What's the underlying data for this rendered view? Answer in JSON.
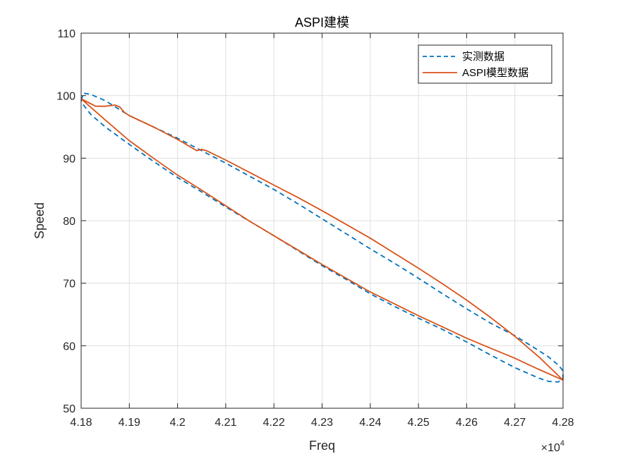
{
  "chart_data": {
    "type": "line",
    "title": "ASPI建模",
    "xlabel": "Freq",
    "ylabel": "Speed",
    "x_multiplier_label": "×10",
    "x_multiplier_exponent": "4",
    "xlim": [
      41800,
      42800
    ],
    "ylim": [
      50,
      110
    ],
    "xticks": [
      41800,
      41900,
      42000,
      42100,
      42200,
      42300,
      42400,
      42500,
      42600,
      42700,
      42800
    ],
    "xtick_labels": [
      "4.18",
      "4.19",
      "4.2",
      "4.21",
      "4.22",
      "4.23",
      "4.24",
      "4.25",
      "4.26",
      "4.27",
      "4.28"
    ],
    "yticks": [
      50,
      60,
      70,
      80,
      90,
      100,
      110
    ],
    "ytick_labels": [
      "50",
      "60",
      "70",
      "80",
      "90",
      "100",
      "110"
    ],
    "grid": true,
    "legend_position": "top-right",
    "series": [
      {
        "name": "实测数据",
        "color": "#0072BD",
        "style": "dashed",
        "x": [
          41800,
          41805,
          41820,
          41850,
          41900,
          41950,
          42000,
          42050,
          42100,
          42150,
          42200,
          42250,
          42300,
          42350,
          42400,
          42450,
          42500,
          42550,
          42600,
          42650,
          42700,
          42740,
          42770,
          42790,
          42800,
          42800,
          42790,
          42770,
          42750,
          42700,
          42650,
          42600,
          42550,
          42500,
          42450,
          42400,
          42350,
          42300,
          42250,
          42200,
          42150,
          42100,
          42050,
          42000,
          41950,
          41900,
          41850,
          41820,
          41805,
          41800
        ],
        "y": [
          99.2,
          100.4,
          100.2,
          99.2,
          96.8,
          95.0,
          93.2,
          91.2,
          89.2,
          87.1,
          85.0,
          82.7,
          80.3,
          77.9,
          75.5,
          73.2,
          70.8,
          68.3,
          65.9,
          63.6,
          61.6,
          59.7,
          58.2,
          56.9,
          56.0,
          54.7,
          54.2,
          54.3,
          54.8,
          56.5,
          58.5,
          60.6,
          62.6,
          64.4,
          66.3,
          68.3,
          70.6,
          72.8,
          75.2,
          77.6,
          79.9,
          82.2,
          84.6,
          86.9,
          89.5,
          92.2,
          95.0,
          97.0,
          98.5,
          99.2
        ]
      },
      {
        "name": "ASPI模型数据",
        "color": "#D95319",
        "style": "solid",
        "x": [
          41800,
          41830,
          41850,
          41870,
          41880,
          41890,
          41900,
          41950,
          42000,
          42040,
          42050,
          42060,
          42100,
          42150,
          42200,
          42250,
          42300,
          42350,
          42400,
          42450,
          42500,
          42550,
          42600,
          42650,
          42700,
          42750,
          42800,
          42750,
          42700,
          42650,
          42600,
          42550,
          42500,
          42450,
          42400,
          42350,
          42300,
          42250,
          42200,
          42150,
          42100,
          42050,
          42000,
          41950,
          41900,
          41850,
          41800
        ],
        "y": [
          99.5,
          98.3,
          98.3,
          98.5,
          98.2,
          97.3,
          96.8,
          95.0,
          93.0,
          91.2,
          91.4,
          91.2,
          89.7,
          87.7,
          85.7,
          83.7,
          81.6,
          79.4,
          77.2,
          74.8,
          72.4,
          69.9,
          67.3,
          64.5,
          61.5,
          58.2,
          54.5,
          56.2,
          58.0,
          59.6,
          61.2,
          63.0,
          64.8,
          66.7,
          68.6,
          70.8,
          73.0,
          75.3,
          77.6,
          79.9,
          82.4,
          84.9,
          87.3,
          90.0,
          92.8,
          96.1,
          99.5
        ]
      }
    ]
  }
}
